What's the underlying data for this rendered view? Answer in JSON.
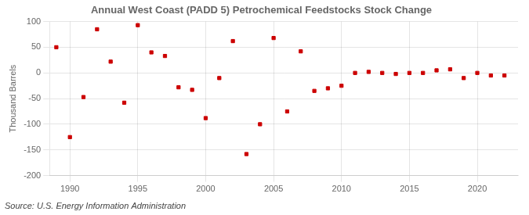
{
  "chart_data": {
    "type": "scatter",
    "title": "Annual West Coast (PADD 5) Petrochemical Feedstocks Stock Change",
    "ylabel": "Thousand Barrels",
    "source": "Source: U.S. Energy Information Administration",
    "x": [
      1989,
      1990,
      1991,
      1992,
      1993,
      1994,
      1995,
      1996,
      1997,
      1998,
      1999,
      2000,
      2001,
      2002,
      2003,
      2004,
      2005,
      2006,
      2007,
      2008,
      2009,
      2010,
      2011,
      2012,
      2013,
      2014,
      2015,
      2016,
      2017,
      2018,
      2019,
      2020,
      2021,
      2022
    ],
    "values": [
      50,
      -125,
      -47,
      85,
      22,
      -58,
      93,
      40,
      33,
      -28,
      -33,
      -88,
      -10,
      62,
      -158,
      -100,
      68,
      -75,
      42,
      -35,
      -30,
      -25,
      0,
      2,
      0,
      -2,
      0,
      0,
      5,
      7,
      -10,
      0,
      -5,
      -5
    ],
    "color": "#cc0000",
    "marker": "square",
    "xlim": [
      1988.5,
      2023
    ],
    "xticks": [
      1990,
      1995,
      2000,
      2005,
      2010,
      2015,
      2020
    ],
    "ylim": [
      -200,
      100
    ],
    "yticks": [
      -200,
      -150,
      -100,
      -50,
      0,
      50,
      100
    ],
    "grid": true
  }
}
